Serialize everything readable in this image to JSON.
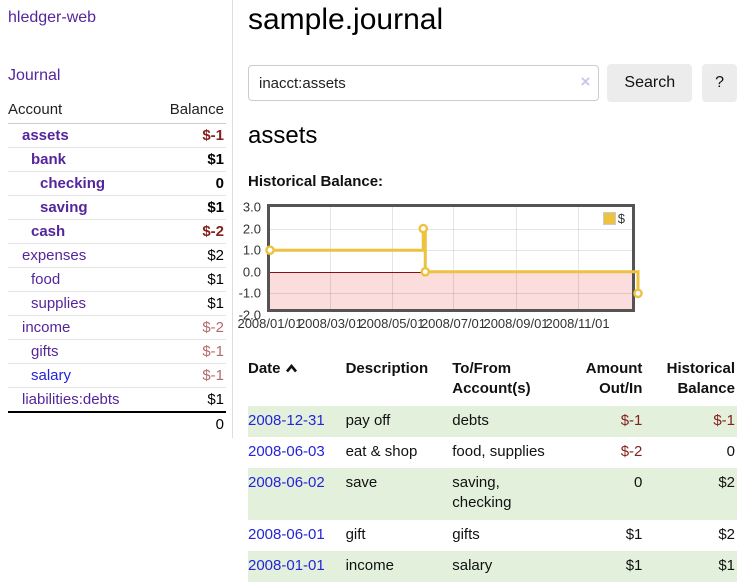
{
  "palette": {
    "purple": "#55269b",
    "blue": "#2424d8",
    "negStrong": "#84201d",
    "negSoft": "#b36a6a",
    "rowGreen": "#e3f1dc",
    "chartYellow": "#EDC240",
    "chartPink": "#fbdddd",
    "zeroLine": "#8f1010",
    "chartBorder": "#545454"
  },
  "sidebar": {
    "app_title": "hledger-web",
    "nav": {
      "journal_label": "Journal"
    },
    "accounts_table": {
      "headers": {
        "account": "Account",
        "balance": "Balance"
      },
      "rows": [
        {
          "account": "assets",
          "balance": "$-1",
          "depth": 1,
          "emph": true,
          "balance_tone": "neg-strong",
          "link_tone": "purple"
        },
        {
          "account": "bank",
          "balance": "$1",
          "depth": 2,
          "emph": true,
          "balance_tone": "normal",
          "link_tone": "purple"
        },
        {
          "account": "checking",
          "balance": "0",
          "depth": 3,
          "emph": true,
          "balance_tone": "normal",
          "link_tone": "purple"
        },
        {
          "account": "saving",
          "balance": "$1",
          "depth": 3,
          "emph": true,
          "balance_tone": "normal",
          "link_tone": "purple"
        },
        {
          "account": "cash",
          "balance": "$-2",
          "depth": 2,
          "emph": true,
          "balance_tone": "neg-strong",
          "link_tone": "purple"
        },
        {
          "account": "expenses",
          "balance": "$2",
          "depth": 1,
          "emph": false,
          "balance_tone": "normal",
          "link_tone": "purple"
        },
        {
          "account": "food",
          "balance": "$1",
          "depth": 2,
          "emph": false,
          "balance_tone": "normal",
          "link_tone": "purple"
        },
        {
          "account": "supplies",
          "balance": "$1",
          "depth": 2,
          "emph": false,
          "balance_tone": "normal",
          "link_tone": "purple"
        },
        {
          "account": "income",
          "balance": "$-2",
          "depth": 1,
          "emph": false,
          "balance_tone": "neg-soft",
          "link_tone": "purple"
        },
        {
          "account": "gifts",
          "balance": "$-1",
          "depth": 2,
          "emph": false,
          "balance_tone": "neg-soft",
          "link_tone": "purple"
        },
        {
          "account": "salary",
          "balance": "$-1",
          "depth": 2,
          "emph": false,
          "balance_tone": "neg-soft",
          "link_tone": "blue"
        },
        {
          "account": "liabilities:debts",
          "balance": "$1",
          "depth": 1,
          "emph": false,
          "balance_tone": "normal",
          "link_tone": "purple"
        }
      ],
      "total": "0"
    }
  },
  "header": {
    "title": "sample.journal"
  },
  "search": {
    "query": "inacct:assets",
    "clear_icon": "×",
    "button_label": "Search",
    "help_label": "?"
  },
  "account_page": {
    "title": "assets",
    "chart_label": "Historical Balance:"
  },
  "chart_data": {
    "type": "line",
    "title": "Historical Balance",
    "step": "after",
    "series": [
      {
        "name": "$",
        "points": [
          [
            "2008-01-01",
            1
          ],
          [
            "2008-06-01",
            2
          ],
          [
            "2008-06-03",
            0
          ],
          [
            "2008-12-31",
            -1
          ]
        ]
      }
    ],
    "x_ticks": [
      "2008/01/01",
      "2008/03/01",
      "2008/05/01",
      "2008/07/01",
      "2008/09/01",
      "2008/11/01"
    ],
    "y_ticks": [
      "3.0",
      "2.0",
      "1.0",
      "0.0",
      "-1.0",
      "-2.0"
    ],
    "xlim": [
      "2008-01-01",
      "2008-12-31"
    ],
    "ylim": [
      -2,
      3
    ],
    "grid": true,
    "legend": {
      "label": "$",
      "position": "top-right"
    },
    "negative_region_shaded": true
  },
  "register": {
    "headers": {
      "date": "Date",
      "sort": "ascending",
      "description": "Description",
      "accounts": "To/From Account(s)",
      "amount": "Amount Out/In",
      "balance": "Historical Balance"
    },
    "rows": [
      {
        "date": "2008-12-31",
        "description": "pay off",
        "accounts": "debts",
        "amount": "$-1",
        "balance": "$-1",
        "amount_tone": "neg-strong",
        "balance_tone": "neg-strong"
      },
      {
        "date": "2008-06-03",
        "description": "eat & shop",
        "accounts": "food, supplies",
        "amount": "$-2",
        "balance": "0",
        "amount_tone": "neg-strong",
        "balance_tone": "normal"
      },
      {
        "date": "2008-06-02",
        "description": "save",
        "accounts": "saving, checking",
        "amount": "0",
        "balance": "$2",
        "amount_tone": "normal",
        "balance_tone": "normal"
      },
      {
        "date": "2008-06-01",
        "description": "gift",
        "accounts": "gifts",
        "amount": "$1",
        "balance": "$2",
        "amount_tone": "normal",
        "balance_tone": "normal"
      },
      {
        "date": "2008-01-01",
        "description": "income",
        "accounts": "salary",
        "amount": "$1",
        "balance": "$1",
        "amount_tone": "normal",
        "balance_tone": "normal"
      }
    ]
  }
}
